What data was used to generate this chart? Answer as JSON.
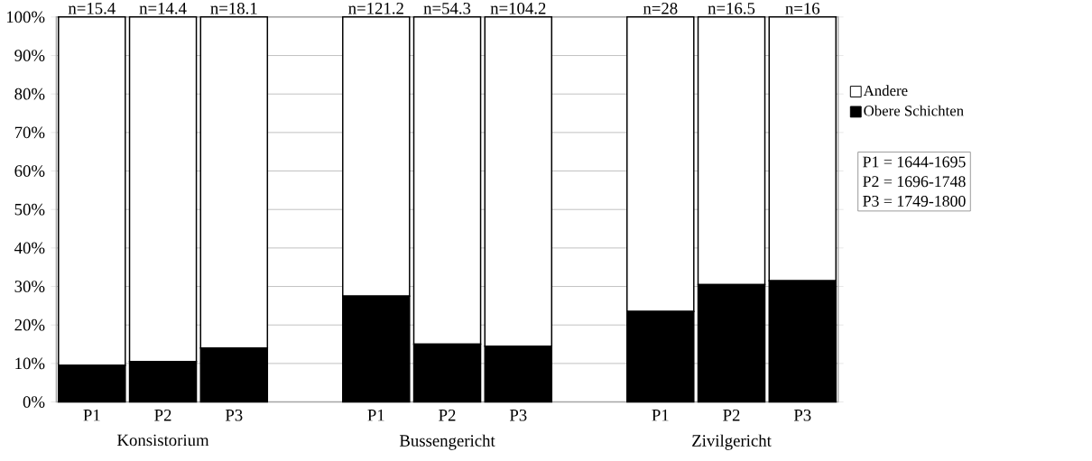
{
  "chart_data": {
    "type": "bar",
    "stacked": true,
    "categories": [
      "P1",
      "P2",
      "P3",
      null,
      "P1",
      "P2",
      "P3",
      null,
      "P1",
      "P2",
      "P3"
    ],
    "series": [
      {
        "name": "Obere Schichten",
        "color": "#000000",
        "values": [
          9.5,
          10.5,
          14,
          null,
          27.5,
          15,
          14.5,
          null,
          23.5,
          30.5,
          31.5
        ]
      },
      {
        "name": "Andere",
        "color": "#ffffff",
        "values": [
          90.5,
          89.5,
          86,
          null,
          72.5,
          85,
          85.5,
          null,
          76.5,
          69.5,
          68.5
        ]
      }
    ],
    "ylim": [
      0,
      100
    ],
    "yticks": [
      {
        "value": 0,
        "label": "0%"
      },
      {
        "value": 10,
        "label": "10%"
      },
      {
        "value": 20,
        "label": "20%"
      },
      {
        "value": 30,
        "label": "30%"
      },
      {
        "value": 40,
        "label": "40%"
      },
      {
        "value": 50,
        "label": "50%"
      },
      {
        "value": 60,
        "label": "60%"
      },
      {
        "value": 70,
        "label": "70%"
      },
      {
        "value": 80,
        "label": "80%"
      },
      {
        "value": 90,
        "label": "90%"
      },
      {
        "value": 100,
        "label": "100%"
      }
    ],
    "grid": "y",
    "legend": "right",
    "annotations": [
      "n=15.4",
      "n=14.4",
      "n=18.1",
      "n=121.2",
      "n=54.3",
      "n=104.2",
      "n=28",
      "n=16.5",
      "n=16",
      "Konsistorium",
      "Bussengericht",
      "Zivilgericht",
      "P1 = 1644-1695",
      "P2 = 1696-1748",
      "P3 = 1749-1800"
    ]
  }
}
